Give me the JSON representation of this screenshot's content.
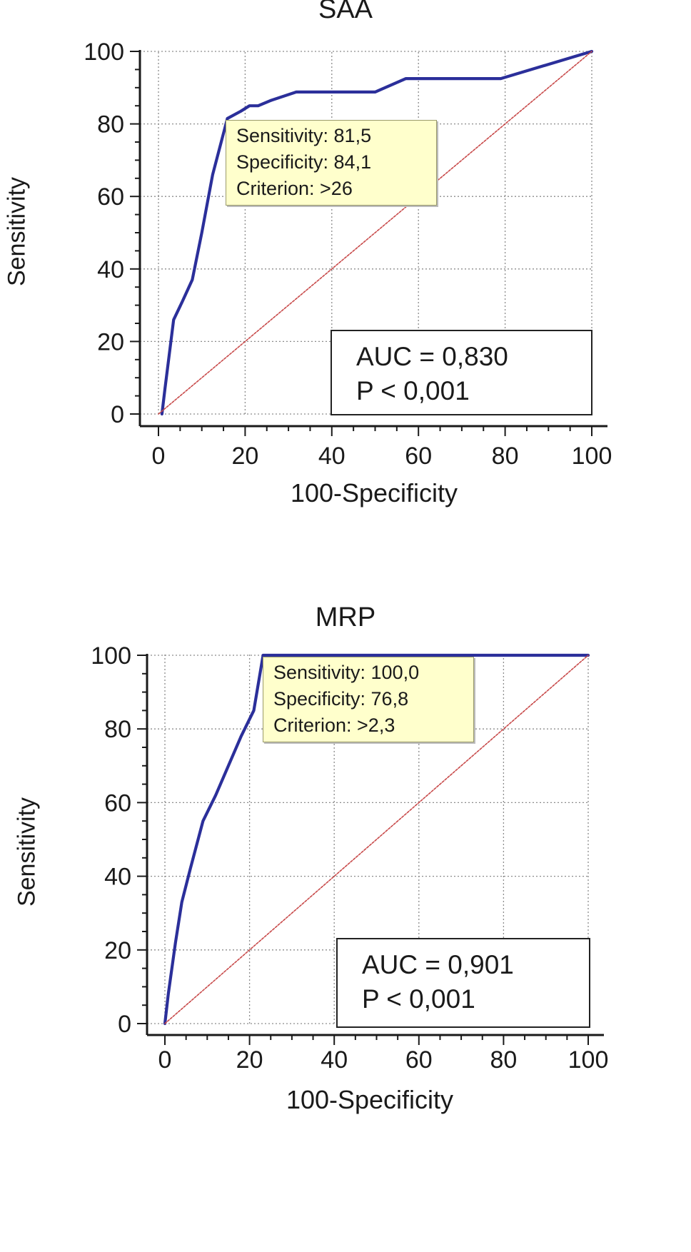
{
  "chart_data": [
    {
      "type": "line",
      "title": "SAA",
      "xlabel": "100-Specificity",
      "ylabel": "Sensitivity",
      "xlim": [
        0,
        100
      ],
      "ylim": [
        0,
        100
      ],
      "xticks": [
        "0",
        "20",
        "40",
        "60",
        "80",
        "100"
      ],
      "yticks": [
        "0",
        "20",
        "40",
        "60",
        "80",
        "100"
      ],
      "grid": true,
      "series": [
        {
          "name": "ROC curve",
          "color": "#2b2f9a",
          "x": [
            0.8,
            1.5,
            3.5,
            5.5,
            7.8,
            10,
            12.5,
            15.9,
            19,
            21,
            23,
            26,
            31.8,
            50,
            57.1,
            79,
            100
          ],
          "y": [
            0,
            7,
            26,
            31,
            37,
            50,
            66,
            81.5,
            83.5,
            85,
            85,
            86.5,
            88.8,
            88.8,
            92.5,
            92.5,
            100
          ]
        },
        {
          "name": "reference",
          "color": "#c84a4a",
          "x": [
            0,
            100
          ],
          "y": [
            0,
            100
          ]
        }
      ],
      "annotation": {
        "sensitivity": "Sensitivity: 81,5",
        "specificity": "Specificity: 84,1",
        "criterion": "Criterion: >26"
      },
      "stats": {
        "auc": "AUC = 0,830",
        "p": "P < 0,001"
      }
    },
    {
      "type": "line",
      "title": "MRP",
      "xlabel": "100-Specificity",
      "ylabel": "Sensitivity",
      "xlim": [
        0,
        100
      ],
      "ylim": [
        0,
        100
      ],
      "xticks": [
        "0",
        "20",
        "40",
        "60",
        "80",
        "100"
      ],
      "yticks": [
        "0",
        "20",
        "40",
        "60",
        "80",
        "100"
      ],
      "grid": true,
      "series": [
        {
          "name": "ROC curve",
          "color": "#2b2f9a",
          "x": [
            0,
            0.8,
            2.5,
            4,
            6,
            9,
            12,
            15,
            18,
            21,
            23.2,
            100
          ],
          "y": [
            0,
            8,
            22,
            33,
            42,
            55,
            62,
            70,
            78,
            85,
            100,
            100
          ]
        },
        {
          "name": "reference",
          "color": "#c84a4a",
          "x": [
            0,
            100
          ],
          "y": [
            0,
            100
          ]
        }
      ],
      "annotation": {
        "sensitivity": "Sensitivity: 100,0",
        "specificity": "Specificity: 76,8",
        "criterion": "Criterion: >2,3"
      },
      "stats": {
        "auc": "AUC = 0,901",
        "p": "P < 0,001"
      }
    }
  ]
}
